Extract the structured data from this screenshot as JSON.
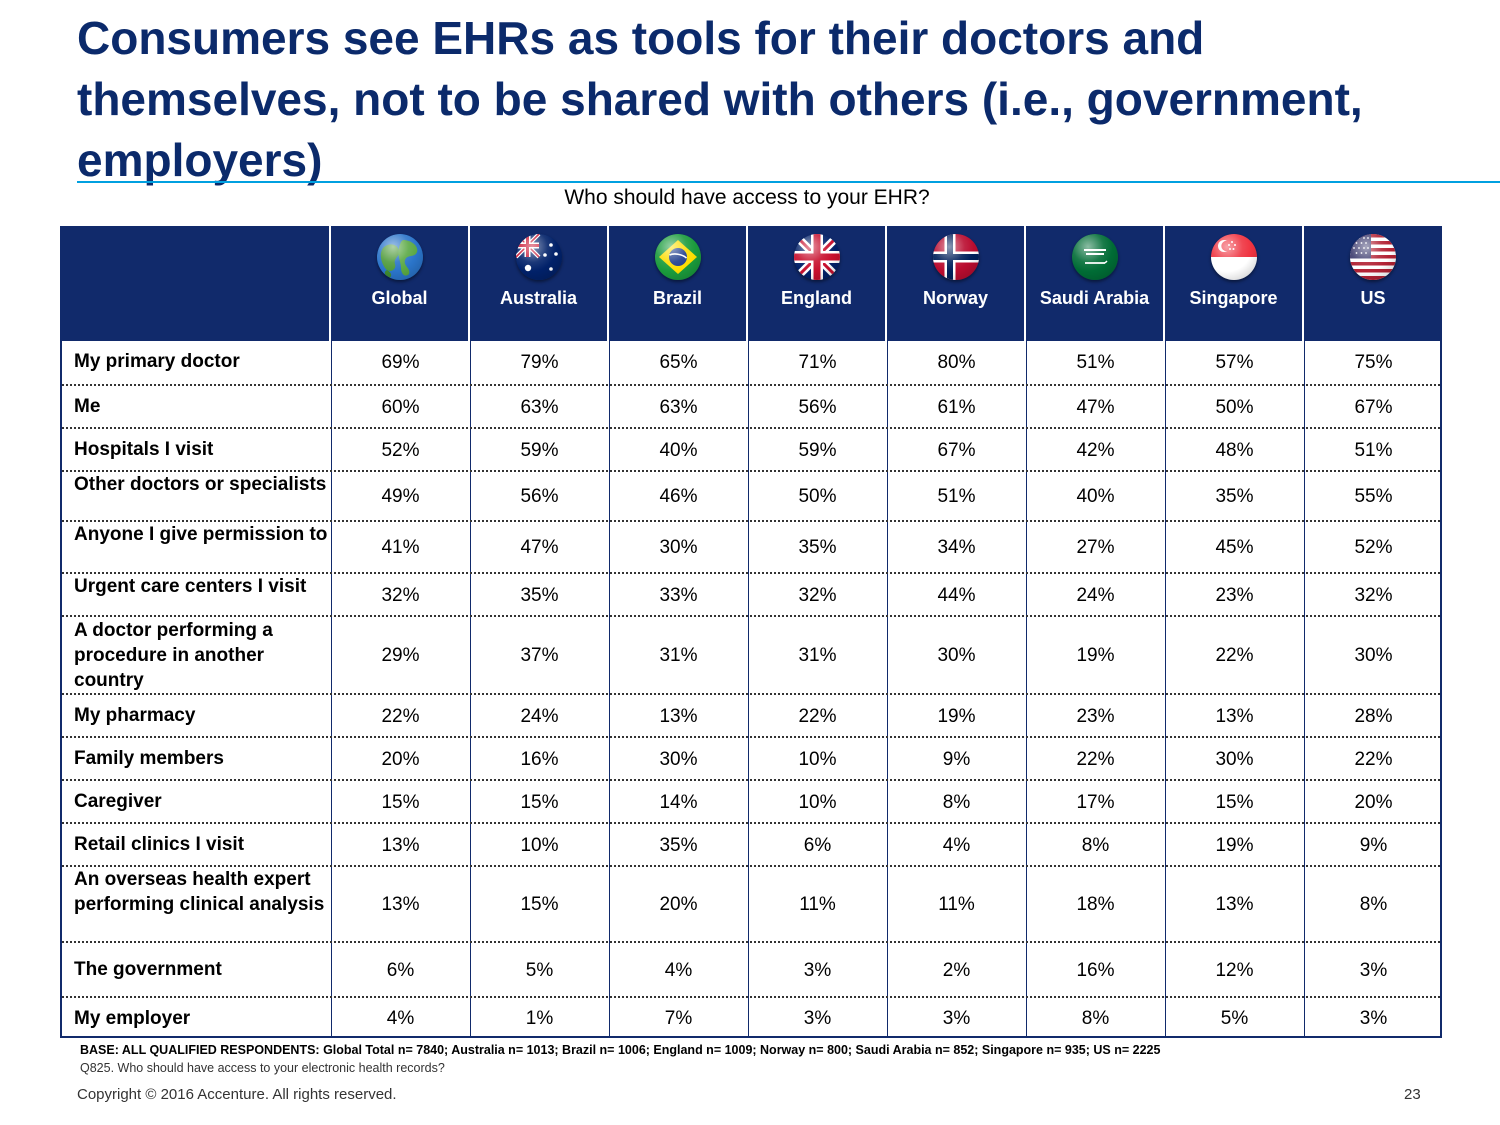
{
  "title": "Consumers see EHRs as tools for their doctors and themselves, not to be shared with others (i.e., government, employers)",
  "subtitle": "Who should have access to your EHR?",
  "columns": [
    {
      "label": "Global",
      "icon": "globe-icon"
    },
    {
      "label": "Australia",
      "icon": "australia-flag-icon"
    },
    {
      "label": "Brazil",
      "icon": "brazil-flag-icon"
    },
    {
      "label": "England",
      "icon": "uk-flag-icon"
    },
    {
      "label": "Norway",
      "icon": "norway-flag-icon"
    },
    {
      "label": "Saudi Arabia",
      "icon": "saudi-arabia-flag-icon"
    },
    {
      "label": "Singapore",
      "icon": "singapore-flag-icon"
    },
    {
      "label": "US",
      "icon": "us-flag-icon"
    }
  ],
  "rows": [
    {
      "label": "My primary doctor",
      "values": [
        "69%",
        "79%",
        "65%",
        "71%",
        "80%",
        "51%",
        "57%",
        "75%"
      ]
    },
    {
      "label": "Me",
      "values": [
        "60%",
        "63%",
        "63%",
        "56%",
        "61%",
        "47%",
        "50%",
        "67%"
      ]
    },
    {
      "label": "Hospitals I visit",
      "values": [
        "52%",
        "59%",
        "40%",
        "59%",
        "67%",
        "42%",
        "48%",
        "51%"
      ]
    },
    {
      "label": "Other doctors or specialists",
      "values": [
        "49%",
        "56%",
        "46%",
        "50%",
        "51%",
        "40%",
        "35%",
        "55%"
      ]
    },
    {
      "label": "Anyone I give permission to",
      "values": [
        "41%",
        "47%",
        "30%",
        "35%",
        "34%",
        "27%",
        "45%",
        "52%"
      ]
    },
    {
      "label": "Urgent care centers I visit",
      "values": [
        "32%",
        "35%",
        "33%",
        "32%",
        "44%",
        "24%",
        "23%",
        "32%"
      ]
    },
    {
      "label": "A doctor performing a procedure in another country",
      "values": [
        "29%",
        "37%",
        "31%",
        "31%",
        "30%",
        "19%",
        "22%",
        "30%"
      ]
    },
    {
      "label": "My pharmacy",
      "values": [
        "22%",
        "24%",
        "13%",
        "22%",
        "19%",
        "23%",
        "13%",
        "28%"
      ]
    },
    {
      "label": "Family members",
      "values": [
        "20%",
        "16%",
        "30%",
        "10%",
        "9%",
        "22%",
        "30%",
        "22%"
      ]
    },
    {
      "label": "Caregiver",
      "values": [
        "15%",
        "15%",
        "14%",
        "10%",
        "8%",
        "17%",
        "15%",
        "20%"
      ]
    },
    {
      "label": "Retail clinics I visit",
      "values": [
        "13%",
        "10%",
        "35%",
        "6%",
        "4%",
        "8%",
        "19%",
        "9%"
      ]
    },
    {
      "label": "An overseas health expert performing clinical analysis",
      "values": [
        "13%",
        "15%",
        "20%",
        "11%",
        "11%",
        "18%",
        "13%",
        "8%"
      ]
    },
    {
      "label": "The government",
      "values": [
        "6%",
        "5%",
        "4%",
        "3%",
        "2%",
        "16%",
        "12%",
        "3%"
      ]
    },
    {
      "label": "My employer",
      "values": [
        "4%",
        "1%",
        "7%",
        "3%",
        "3%",
        "8%",
        "5%",
        "3%"
      ]
    }
  ],
  "footnote": {
    "base": "BASE: ALL QUALIFIED RESPONDENTS: Global Total n= 7840; Australia n= 1013; Brazil n= 1006; England n= 1009; Norway n= 800; Saudi Arabia  n= 852; Singapore n= 935; US n= 2225",
    "question": "Q825.  Who should have access to your electronic health records?"
  },
  "copyright": "Copyright © 2016 Accenture. All rights reserved.",
  "page_number": "23",
  "colors": {
    "title": "#0b2a6b",
    "header_bg": "#112a6b",
    "rule": "#00a0e0"
  }
}
